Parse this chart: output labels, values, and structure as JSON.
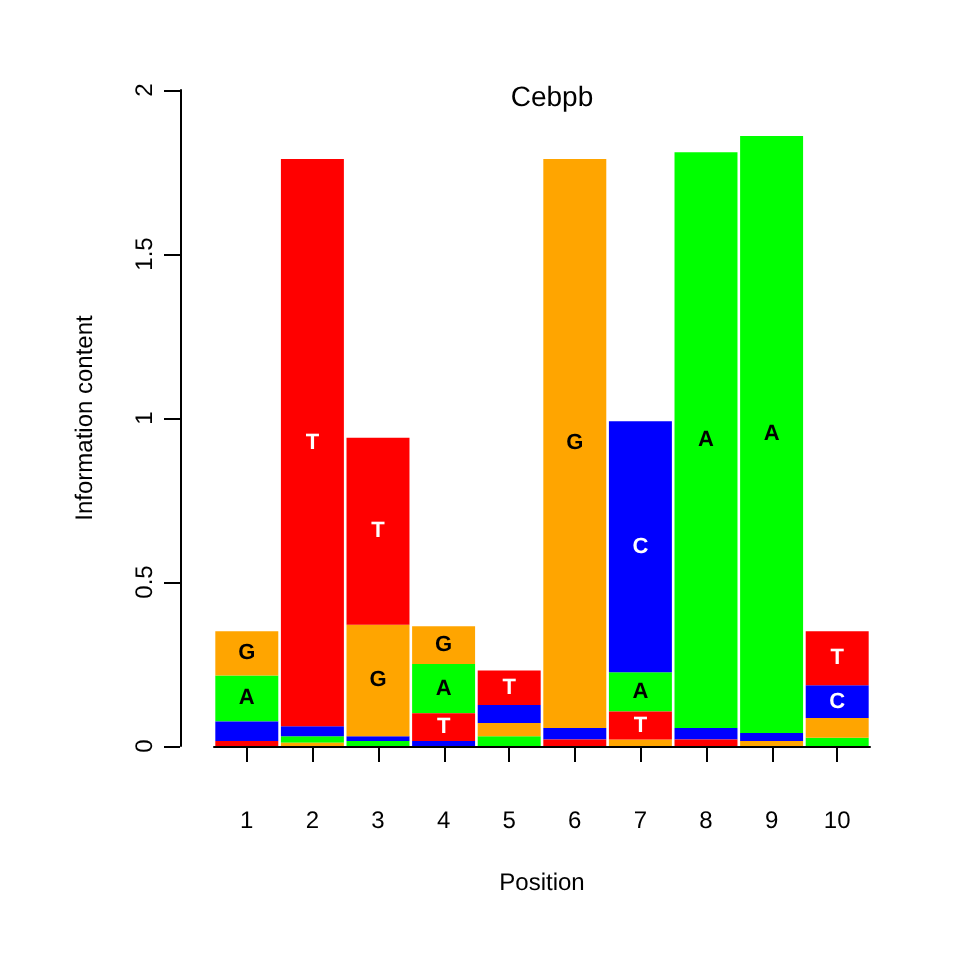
{
  "chart_data": {
    "type": "bar",
    "title": "Cebpb",
    "xlabel": "Position",
    "ylabel": "Information content",
    "x": [
      1,
      2,
      3,
      4,
      5,
      6,
      7,
      8,
      9,
      10
    ],
    "xlim": [
      0.5,
      10.5
    ],
    "xticks": [
      1,
      2,
      3,
      4,
      5,
      6,
      7,
      8,
      9,
      10
    ],
    "ylim": [
      0,
      2
    ],
    "yticks": [
      0,
      0.5,
      1,
      1.5,
      2
    ],
    "series": [
      {
        "name": "A",
        "color": "#00ff00",
        "values": [
          0.14,
          0.02,
          0.015,
          0.15,
          0.03,
          null,
          0.12,
          1.755,
          1.82,
          0.025
        ],
        "base": [
          0.075,
          0.01,
          0,
          0.1,
          0,
          null,
          0.105,
          0.055,
          0.04,
          0
        ]
      },
      {
        "name": "C",
        "color": "#0000ff",
        "values": [
          0.06,
          0.03,
          0.015,
          0.015,
          0.055,
          0.035,
          0.765,
          0.035,
          0.025,
          0.1
        ],
        "base": [
          0.015,
          0.03,
          0.015,
          0,
          0.07,
          0.02,
          0.225,
          0.02,
          0.015,
          0.085
        ]
      },
      {
        "name": "G",
        "color": "#ffa500",
        "values": [
          0.135,
          0.01,
          0.34,
          0.115,
          0.04,
          1.735,
          0.02,
          null,
          0.015,
          0.06
        ],
        "base": [
          0.215,
          0,
          0.03,
          0.25,
          0.03,
          0.055,
          0,
          null,
          0,
          0.025
        ]
      },
      {
        "name": "T",
        "color": "#ff0000",
        "values": [
          0.015,
          1.73,
          0.57,
          0.085,
          0.105,
          0.02,
          0.085,
          0.02,
          null,
          0.165
        ],
        "base": [
          0,
          0.06,
          0.37,
          0.015,
          0.125,
          0,
          0.02,
          0,
          null,
          0.185
        ]
      }
    ]
  }
}
